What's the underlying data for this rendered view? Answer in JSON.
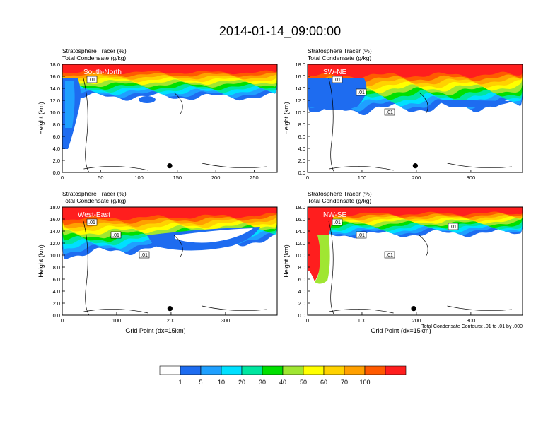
{
  "title": "2014-01-14_09:00:00",
  "panel_header": {
    "line1": "Stratosphere Tracer   (%)",
    "line2": "Total Condensate   (g/kg)"
  },
  "ylabel": "Height (km)",
  "xlabel": "Grid Point (dx=15km)",
  "contour_note": "Total Condensate Contours: .01 to .01 by .000",
  "colorbar": {
    "colors": [
      "#ffffff",
      "#1e6cf0",
      "#1fa0ff",
      "#00e0ff",
      "#00e6a0",
      "#00e000",
      "#a0e632",
      "#ffff00",
      "#ffd200",
      "#ffa000",
      "#ff5a00",
      "#ff1e1e"
    ],
    "labels": [
      "1",
      "5",
      "10",
      "20",
      "30",
      "40",
      "50",
      "60",
      "70",
      "100"
    ]
  },
  "chart_data": [
    {
      "type": "heatmap",
      "panel_label": "South-North",
      "xlim": [
        0,
        280
      ],
      "ylim": [
        0,
        18
      ],
      "xticks": [
        0,
        50,
        100,
        150,
        200,
        250
      ],
      "yticks": [
        "0.0",
        "2.0",
        "4.0",
        "6.0",
        "8.0",
        "10.0",
        "12.0",
        "14.0",
        "16.0",
        "18.0"
      ],
      "contour_labels": [
        ".01"
      ],
      "marker_x": 140,
      "marker_y": 1.1
    },
    {
      "type": "heatmap",
      "panel_label": "SW-NE",
      "xlim": [
        0,
        395
      ],
      "ylim": [
        0,
        18
      ],
      "xticks": [
        0,
        100,
        200,
        300
      ],
      "yticks": [
        "0.0",
        "2.0",
        "4.0",
        "6.0",
        "8.0",
        "10.0",
        "12.0",
        "14.0",
        "16.0",
        "18.0"
      ],
      "contour_labels": [
        ".01",
        ".01",
        ".01"
      ],
      "marker_x": 198,
      "marker_y": 1.1
    },
    {
      "type": "heatmap",
      "panel_label": "West-East",
      "xlim": [
        0,
        395
      ],
      "ylim": [
        0,
        18
      ],
      "xticks": [
        0,
        100,
        200,
        300
      ],
      "yticks": [
        "0.0",
        "2.0",
        "4.0",
        "6.0",
        "8.0",
        "10.0",
        "12.0",
        "14.0",
        "16.0",
        "18.0"
      ],
      "contour_labels": [
        ".01",
        ".01",
        ".01"
      ],
      "marker_x": 198,
      "marker_y": 1.1
    },
    {
      "type": "heatmap",
      "panel_label": "NW-SE",
      "xlim": [
        0,
        395
      ],
      "ylim": [
        0,
        18
      ],
      "xticks": [
        0,
        100,
        200,
        300
      ],
      "yticks": [
        "0.0",
        "2.0",
        "4.0",
        "6.0",
        "8.0",
        "10.0",
        "12.0",
        "14.0",
        "16.0",
        "18.0"
      ],
      "contour_labels": [
        ".01",
        ".01",
        ".01",
        ".01"
      ],
      "marker_x": 195,
      "marker_y": 1.1
    }
  ]
}
